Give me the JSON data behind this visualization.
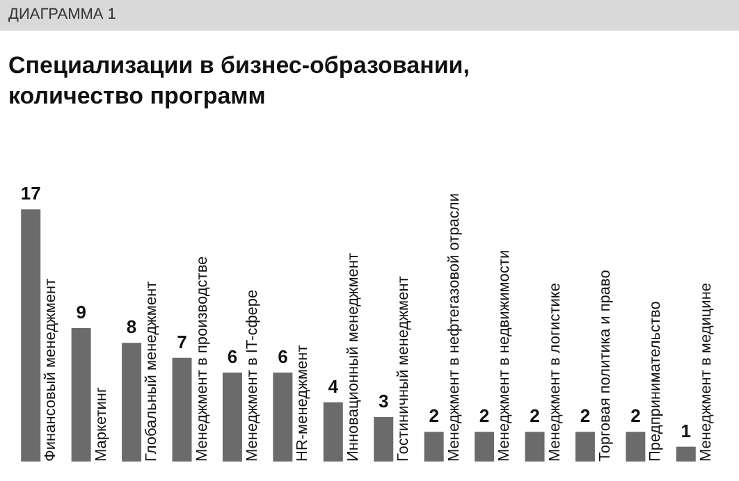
{
  "chart_data": {
    "type": "bar",
    "subtitle": "ДИАГРАММА 1",
    "title": "Специализации в бизнес-образовании,\nколичество программ",
    "categories": [
      "Финансовый менеджмент",
      "Маркетинг",
      "Глобальный менеджмент",
      "Менеджмент в производстве",
      "Менеджмент в IT-сфере",
      "HR-менеджмент",
      "Инновационный менеджмент",
      "Гостиничный менеджмент",
      "Менеджмент в нефтегазовой отрасли",
      "Менеджмент в недвижимости",
      "Менеджмент в логистике",
      "Торговая политика и право",
      "Предпринимательство",
      "Менеджмент в медицине"
    ],
    "values": [
      17,
      9,
      8,
      7,
      6,
      6,
      4,
      3,
      2,
      2,
      2,
      2,
      2,
      1
    ],
    "color": "#6b6b6b",
    "data_labels": true
  }
}
